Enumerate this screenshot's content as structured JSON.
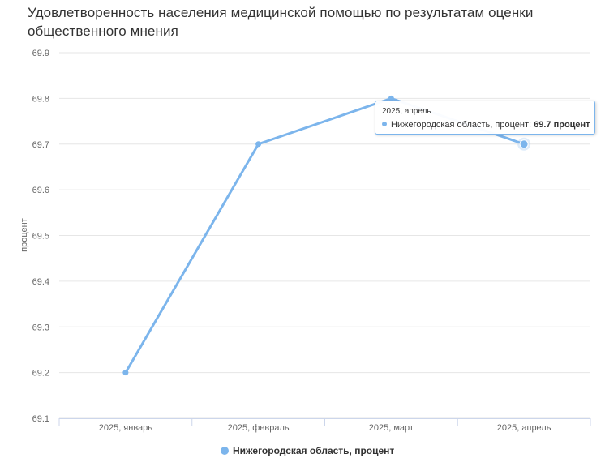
{
  "chart_data": {
    "type": "line",
    "title": "Удовлетворенность населения медицинской помощью по результатам оценки общественного мнения",
    "xlabel": "",
    "ylabel": "процент",
    "categories": [
      "2025, январь",
      "2025, февраль",
      "2025, март",
      "2025, апрель"
    ],
    "series": [
      {
        "name": "Нижегородская область, процент",
        "values": [
          69.2,
          69.7,
          69.8,
          69.7
        ]
      }
    ],
    "ylim": [
      69.1,
      69.9
    ],
    "yticks": [
      "69.9",
      "69.8",
      "69.7",
      "69.6",
      "69.5",
      "69.4",
      "69.3",
      "69.2",
      "69.1"
    ],
    "grid": true,
    "legend_position": "bottom",
    "series_color": "#7cb5ec",
    "tooltip": {
      "header": "2025, апрель",
      "label": "Нижегородская область, процент: ",
      "value": "69.7 процент"
    }
  }
}
